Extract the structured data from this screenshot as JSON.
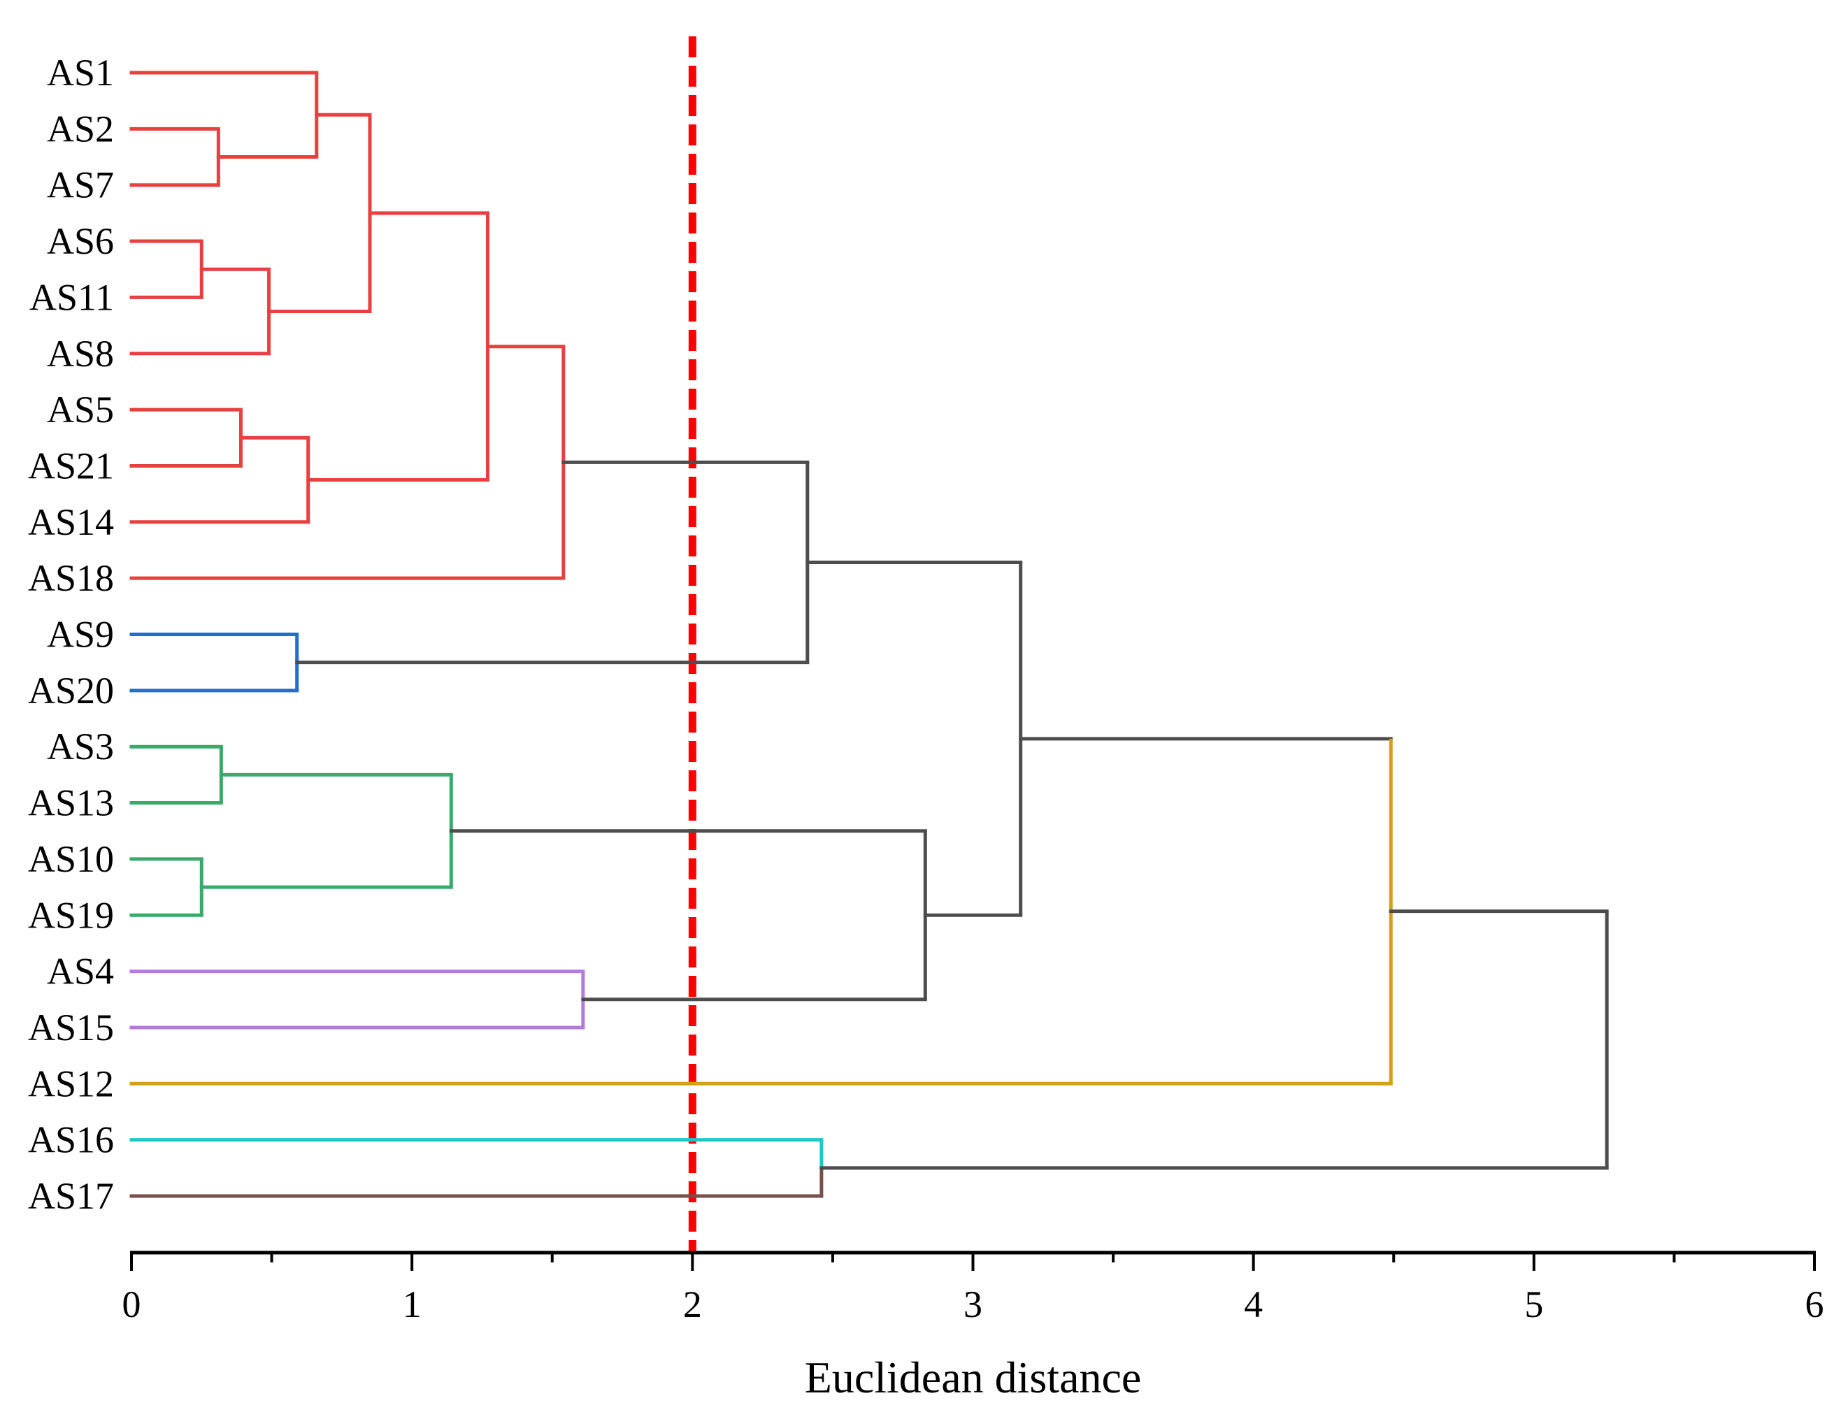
{
  "chart_data": {
    "type": "dendrogram",
    "orientation": "horizontal",
    "xlabel": "Euclidean distance",
    "xlim": [
      0,
      6
    ],
    "xticks": [
      0,
      1,
      2,
      3,
      4,
      5,
      6
    ],
    "xtick_labels": [
      "0",
      "1",
      "2",
      "3",
      "4",
      "5",
      "6"
    ],
    "minor_tick_step": 0.5,
    "cut_line": {
      "value": 2.0,
      "style": "dashed",
      "color": "#ff0000"
    },
    "leaves": [
      "AS1",
      "AS2",
      "AS7",
      "AS6",
      "AS11",
      "AS8",
      "AS5",
      "AS21",
      "AS14",
      "AS18",
      "AS9",
      "AS20",
      "AS3",
      "AS13",
      "AS10",
      "AS19",
      "AS4",
      "AS15",
      "AS12",
      "AS16",
      "AS17"
    ],
    "colors": {
      "red": "#e84040",
      "blue": "#1f6fd1",
      "green": "#3aaa6b",
      "purple": "#b57ad8",
      "gold": "#d4a017",
      "cyan": "#1fc8c8",
      "brown": "#7a4e4a",
      "gray": "#4d4d4d"
    },
    "merges": [
      {
        "id": "m1",
        "left": "AS2",
        "right": "AS7",
        "height": 0.31,
        "color": "red"
      },
      {
        "id": "m2",
        "left": "AS1",
        "right": "m1",
        "height": 0.66,
        "color": "red"
      },
      {
        "id": "m3",
        "left": "AS6",
        "right": "AS11",
        "height": 0.25,
        "color": "red"
      },
      {
        "id": "m4",
        "left": "m3",
        "right": "AS8",
        "height": 0.49,
        "color": "red"
      },
      {
        "id": "m5",
        "left": "m2",
        "right": "m4",
        "height": 0.85,
        "color": "red"
      },
      {
        "id": "m6",
        "left": "AS5",
        "right": "AS21",
        "height": 0.39,
        "color": "red"
      },
      {
        "id": "m7",
        "left": "m6",
        "right": "AS14",
        "height": 0.63,
        "color": "red"
      },
      {
        "id": "m8",
        "left": "m5",
        "right": "m7",
        "height": 1.27,
        "color": "red"
      },
      {
        "id": "m9",
        "left": "m8",
        "right": "AS18",
        "height": 1.54,
        "color": "red"
      },
      {
        "id": "m10",
        "left": "AS9",
        "right": "AS20",
        "height": 0.59,
        "color": "blue"
      },
      {
        "id": "m11",
        "left": "m9",
        "right": "m10",
        "height": 2.41,
        "color": "gray"
      },
      {
        "id": "m12",
        "left": "AS3",
        "right": "AS13",
        "height": 0.32,
        "color": "green"
      },
      {
        "id": "m13",
        "left": "AS10",
        "right": "AS19",
        "height": 0.25,
        "color": "green"
      },
      {
        "id": "m14",
        "left": "m12",
        "right": "m13",
        "height": 1.14,
        "color": "green"
      },
      {
        "id": "m15",
        "left": "AS4",
        "right": "AS15",
        "height": 1.61,
        "color": "purple"
      },
      {
        "id": "m16",
        "left": "m14",
        "right": "m15",
        "height": 2.83,
        "color": "gray"
      },
      {
        "id": "m17",
        "left": "m11",
        "right": "m16",
        "height": 3.17,
        "color": "gray"
      },
      {
        "id": "m18",
        "left": "m17",
        "right": "AS12",
        "height": 4.49,
        "color": "gray",
        "left_color": "gray",
        "right_color": "gold"
      },
      {
        "id": "m19",
        "left": "AS16",
        "right": "AS17",
        "height": 2.46,
        "color": "gray",
        "left_color": "cyan",
        "right_color": "brown"
      },
      {
        "id": "m20",
        "left": "m18",
        "right": "m19",
        "height": 5.26,
        "color": "gray"
      }
    ]
  }
}
